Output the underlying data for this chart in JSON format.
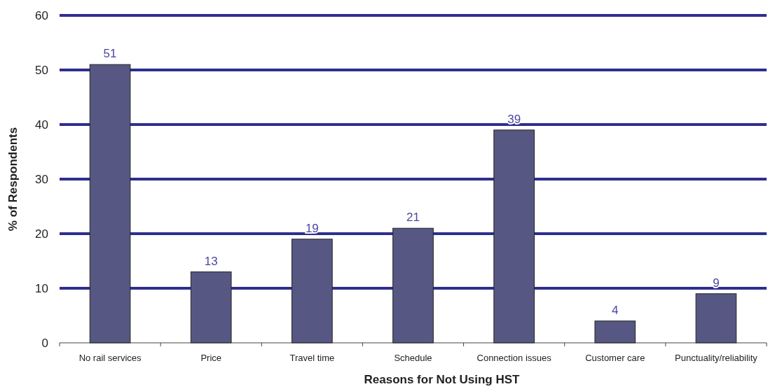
{
  "chart_data": {
    "type": "bar",
    "xlabel": "Reasons for Not Using HST",
    "ylabel": "% of Respondents",
    "categories": [
      "No rail services",
      "Price",
      "Travel time",
      "Schedule",
      "Connection issues",
      "Customer care",
      "Punctuality/reliability"
    ],
    "values": [
      51,
      13,
      19,
      21,
      39,
      4,
      9
    ],
    "color": "#575783",
    "ylim": [
      0,
      60
    ],
    "yticks": [
      0,
      10,
      20,
      30,
      40,
      50,
      60
    ],
    "grid": "y",
    "data_labels": true
  }
}
